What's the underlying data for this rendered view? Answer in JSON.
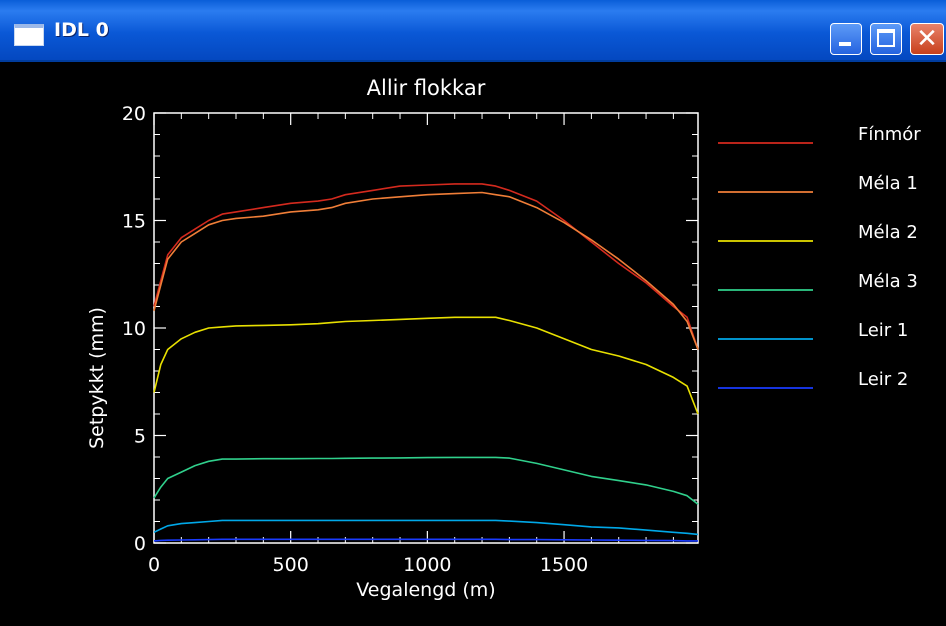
{
  "window": {
    "title": "IDL 0",
    "icon": "window-icon",
    "controls": [
      "minimize-icon",
      "maximize-icon",
      "close-icon"
    ],
    "close_glyph": "✕"
  },
  "chart_data": {
    "type": "line",
    "title": "Allir flokkar",
    "xlabel": "Vegalengd (m)",
    "ylabel": "Setpykkt (mm)",
    "xlim": [
      0,
      1990
    ],
    "ylim": [
      0,
      20
    ],
    "xticks": [
      0,
      500,
      1000,
      1500
    ],
    "yticks": [
      0,
      5,
      10,
      15,
      20
    ],
    "grid": false,
    "background": "#000000",
    "axis_color": "#ffffff",
    "legend_position": "right",
    "x": [
      0,
      25,
      50,
      100,
      150,
      200,
      250,
      300,
      400,
      500,
      600,
      650,
      700,
      800,
      900,
      1000,
      1100,
      1200,
      1250,
      1300,
      1400,
      1500,
      1600,
      1700,
      1800,
      1900,
      1950,
      1990
    ],
    "series": [
      {
        "name": "Fínmór",
        "color": "#d42a1e",
        "values": [
          11.0,
          12.2,
          13.4,
          14.2,
          14.6,
          15.0,
          15.3,
          15.4,
          15.6,
          15.8,
          15.9,
          16.0,
          16.2,
          16.4,
          16.6,
          16.65,
          16.7,
          16.7,
          16.6,
          16.4,
          15.9,
          15.0,
          14.0,
          13.0,
          12.1,
          11.0,
          10.5,
          9.0
        ]
      },
      {
        "name": "Méla 1",
        "color": "#f07e38",
        "values": [
          10.8,
          12.0,
          13.2,
          14.0,
          14.4,
          14.8,
          15.0,
          15.1,
          15.2,
          15.4,
          15.5,
          15.6,
          15.8,
          16.0,
          16.1,
          16.2,
          16.25,
          16.3,
          16.2,
          16.1,
          15.6,
          14.9,
          14.1,
          13.2,
          12.2,
          11.1,
          10.3,
          9.0
        ]
      },
      {
        "name": "Méla 2",
        "color": "#e8e000",
        "values": [
          7.0,
          8.3,
          9.0,
          9.5,
          9.8,
          10.0,
          10.05,
          10.1,
          10.12,
          10.15,
          10.2,
          10.25,
          10.3,
          10.35,
          10.4,
          10.45,
          10.5,
          10.5,
          10.5,
          10.35,
          10.0,
          9.5,
          9.0,
          8.7,
          8.3,
          7.7,
          7.3,
          6.0
        ]
      },
      {
        "name": "Méla 3",
        "color": "#30d08c",
        "values": [
          2.1,
          2.6,
          3.0,
          3.3,
          3.6,
          3.8,
          3.9,
          3.9,
          3.92,
          3.92,
          3.93,
          3.93,
          3.94,
          3.95,
          3.96,
          3.97,
          3.98,
          3.98,
          3.98,
          3.95,
          3.7,
          3.4,
          3.1,
          2.9,
          2.7,
          2.4,
          2.2,
          1.8
        ]
      },
      {
        "name": "Leir 1",
        "color": "#00a8e8",
        "values": [
          0.5,
          0.65,
          0.8,
          0.9,
          0.95,
          1.0,
          1.05,
          1.05,
          1.05,
          1.05,
          1.05,
          1.05,
          1.05,
          1.05,
          1.05,
          1.05,
          1.05,
          1.05,
          1.05,
          1.02,
          0.95,
          0.85,
          0.75,
          0.7,
          0.6,
          0.5,
          0.45,
          0.4
        ]
      },
      {
        "name": "Leir 2",
        "color": "#1a3cff",
        "values": [
          0.1,
          0.12,
          0.13,
          0.14,
          0.15,
          0.16,
          0.17,
          0.17,
          0.17,
          0.17,
          0.17,
          0.17,
          0.17,
          0.17,
          0.17,
          0.17,
          0.17,
          0.17,
          0.17,
          0.16,
          0.16,
          0.15,
          0.14,
          0.13,
          0.12,
          0.11,
          0.1,
          0.1
        ]
      }
    ]
  }
}
